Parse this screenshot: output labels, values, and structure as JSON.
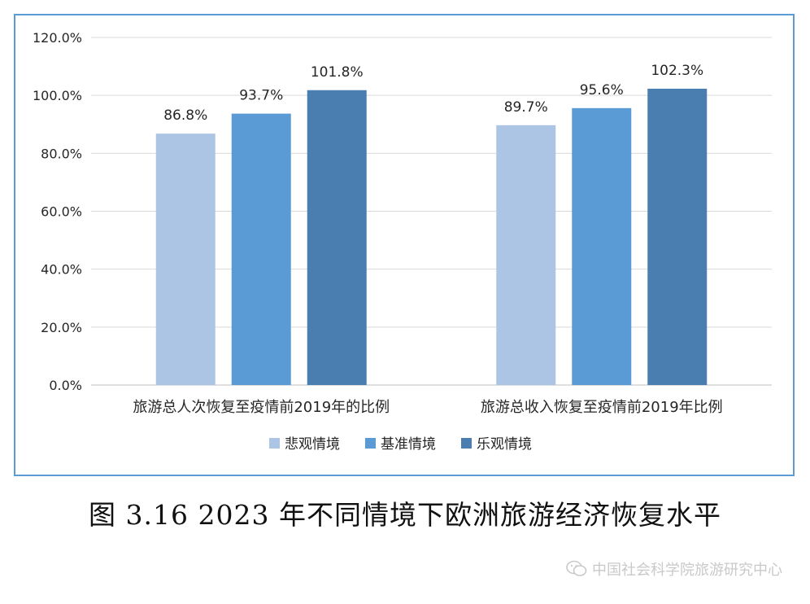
{
  "chart_data": {
    "type": "bar",
    "categories": [
      "旅游总人次恢复至疫情前2019年的比例",
      "旅游总收入恢复至疫情前2019年比例"
    ],
    "series": [
      {
        "name": "悲观情境",
        "values": [
          86.8,
          89.7
        ],
        "labels": [
          "86.8%",
          "89.7%"
        ],
        "color": "#adc5e4"
      },
      {
        "name": "基准情境",
        "values": [
          93.7,
          95.6
        ],
        "labels": [
          "93.7%",
          "95.6%"
        ],
        "color": "#5b9bd5"
      },
      {
        "name": "乐观情境",
        "values": [
          101.8,
          102.3
        ],
        "labels": [
          "101.8%",
          "102.3%"
        ],
        "color": "#4a7eb0"
      }
    ],
    "ylim": [
      0,
      120
    ],
    "yticks": [
      "0.0%",
      "20.0%",
      "40.0%",
      "60.0%",
      "80.0%",
      "100.0%",
      "120.0%"
    ],
    "grid": true,
    "legend_position": "bottom"
  },
  "caption": "图 3.16 2023 年不同情境下欧洲旅游经济恢复水平",
  "watermark": "中国社会科学院旅游研究中心"
}
